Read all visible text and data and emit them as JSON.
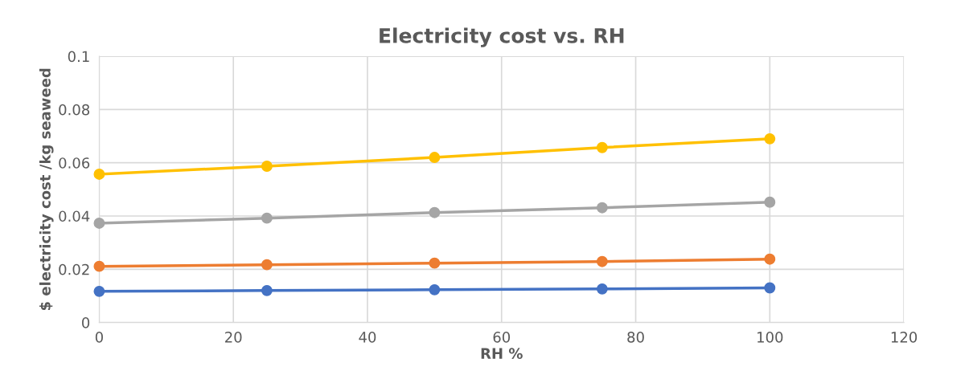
{
  "chart_data": {
    "type": "line",
    "title": "Electricity cost vs. RH",
    "xlabel": "RH %",
    "ylabel": "$ electricity cost /kg seaweed",
    "x": [
      0,
      25,
      50,
      75,
      100
    ],
    "series": [
      {
        "color": "#4472c4",
        "values": [
          0.0117,
          0.012,
          0.0123,
          0.0126,
          0.013
        ]
      },
      {
        "color": "#ed7d31",
        "values": [
          0.0211,
          0.0217,
          0.0223,
          0.0229,
          0.0238
        ]
      },
      {
        "color": "#a5a5a5",
        "values": [
          0.0373,
          0.0392,
          0.0413,
          0.0431,
          0.0452
        ]
      },
      {
        "color": "#ffc000",
        "values": [
          0.0557,
          0.0587,
          0.062,
          0.0657,
          0.069
        ]
      }
    ],
    "xlim": [
      0,
      120
    ],
    "xticks": [
      0,
      20,
      40,
      60,
      80,
      100,
      120
    ],
    "ylim": [
      0,
      0.1
    ],
    "yticks": [
      0,
      0.02,
      0.04,
      0.06,
      0.08,
      0.1
    ],
    "grid": true,
    "marker": "circle",
    "line_style": "solid",
    "legend": false
  }
}
